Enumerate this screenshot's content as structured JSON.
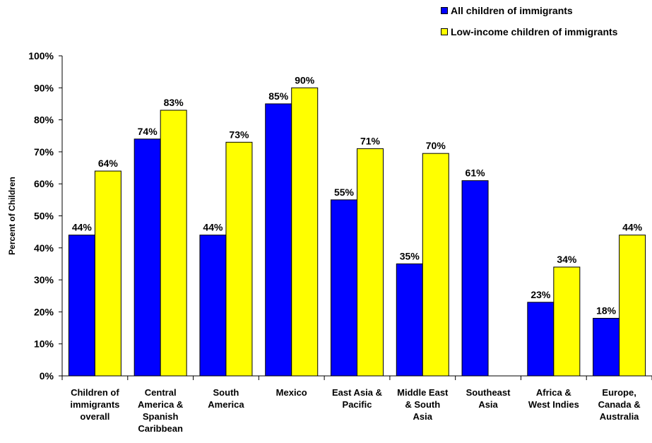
{
  "chart_data": {
    "type": "bar",
    "title": "",
    "xlabel": "",
    "ylabel": "Percent of Children",
    "ylim": [
      0,
      100
    ],
    "ytick_step": 10,
    "ytick_labels": [
      "0%",
      "10%",
      "20%",
      "30%",
      "40%",
      "50%",
      "60%",
      "70%",
      "80%",
      "90%",
      "100%"
    ],
    "grid": false,
    "legend_position": "top-right",
    "categories": [
      [
        "Children of",
        "immigrants",
        "overall"
      ],
      [
        "Central",
        "America &",
        "Spanish",
        "Caribbean"
      ],
      [
        "South",
        "America"
      ],
      [
        "Mexico"
      ],
      [
        "East Asia &",
        "Pacific"
      ],
      [
        "Middle East",
        "& South",
        "Asia"
      ],
      [
        "Southeast",
        "Asia"
      ],
      [
        "Africa &",
        "West Indies"
      ],
      [
        "Europe,",
        "Canada &",
        "Australia"
      ]
    ],
    "series": [
      {
        "name": "All children of immigrants",
        "color": "#0000FF",
        "values": [
          44,
          74,
          44,
          85,
          55,
          35,
          61,
          23,
          18
        ],
        "labels": [
          "44%",
          "74%",
          "44%",
          "85%",
          "55%",
          "35%",
          "61%",
          "23%",
          "18%"
        ]
      },
      {
        "name": "Low-income children of immigrants",
        "color": "#FFFF00",
        "values": [
          64,
          83,
          73,
          90,
          71,
          69.5,
          null,
          34,
          44
        ],
        "labels": [
          "64%",
          "83%",
          "73%",
          "90%",
          "71%",
          "70%",
          null,
          "34%",
          "44%"
        ]
      }
    ]
  }
}
